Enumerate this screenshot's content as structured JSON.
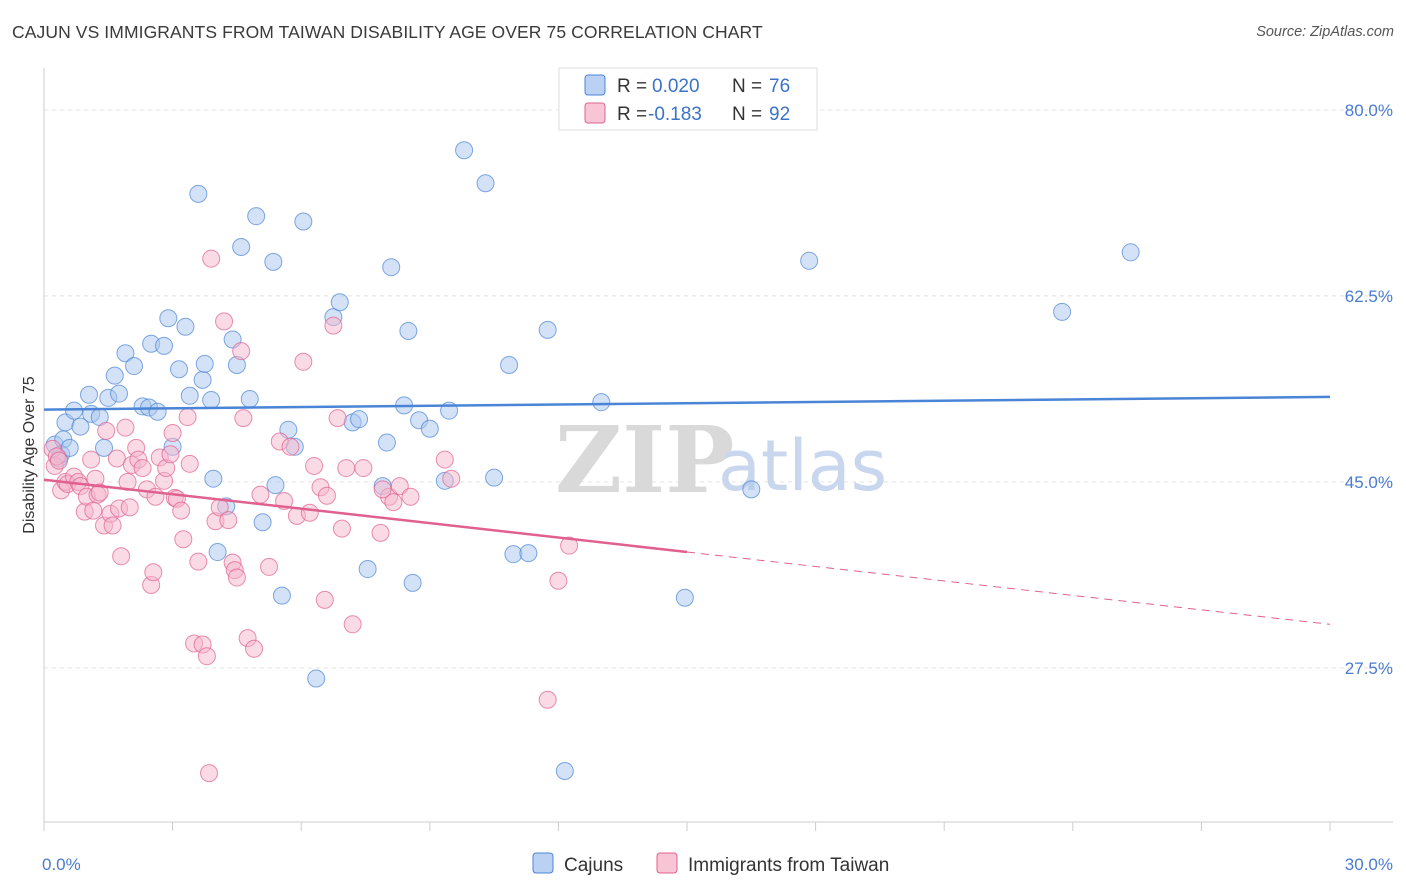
{
  "title": "CAJUN VS IMMIGRANTS FROM TAIWAN DISABILITY AGE OVER 75 CORRELATION CHART",
  "source": "Source: ZipAtlas.com",
  "watermark": {
    "zip": "ZIP",
    "atlas": "atlas"
  },
  "legend": {
    "r_label": "R =",
    "n_label": "N =",
    "rows": [
      {
        "r": "0.020",
        "n": "76",
        "color": "#a9c6f0"
      },
      {
        "r": "-0.183",
        "n": "92",
        "color": "#f6b6cb"
      }
    ]
  },
  "chart_data": {
    "type": "scatter",
    "title": "CAJUN VS IMMIGRANTS FROM TAIWAN DISABILITY AGE OVER 75 CORRELATION CHART",
    "xlabel": "",
    "ylabel": "Disability Age Over 75",
    "xlim": [
      0,
      30
    ],
    "ylim": [
      13,
      83
    ],
    "x_tick_labels": [
      "0.0%",
      "30.0%"
    ],
    "y_ticks": [
      {
        "value": 80,
        "label": "80.0%"
      },
      {
        "value": 62.5,
        "label": "62.5%"
      },
      {
        "value": 45,
        "label": "45.0%"
      },
      {
        "value": 27.5,
        "label": "27.5%"
      }
    ],
    "grid": true,
    "legend_position": "top-center",
    "series": [
      {
        "name": "Cajuns",
        "color": "#4a84d6",
        "fill": "#a9c6f0",
        "trend": {
          "x": [
            0,
            30
          ],
          "y": [
            51.8,
            53.0
          ],
          "dashed_from": null
        },
        "points": [
          [
            0.25,
            48.5
          ],
          [
            0.35,
            47.2
          ],
          [
            0.45,
            49.0
          ],
          [
            0.4,
            47.6
          ],
          [
            0.5,
            50.6
          ],
          [
            0.6,
            48.2
          ],
          [
            0.7,
            51.7
          ],
          [
            0.85,
            50.2
          ],
          [
            1.05,
            53.2
          ],
          [
            1.1,
            51.4
          ],
          [
            1.3,
            51.1
          ],
          [
            1.4,
            48.2
          ],
          [
            1.5,
            52.9
          ],
          [
            1.65,
            55.0
          ],
          [
            1.75,
            53.3
          ],
          [
            1.9,
            57.1
          ],
          [
            2.1,
            55.9
          ],
          [
            2.3,
            52.1
          ],
          [
            2.45,
            52.0
          ],
          [
            2.5,
            58.0
          ],
          [
            2.65,
            51.6
          ],
          [
            2.8,
            57.8
          ],
          [
            2.9,
            60.4
          ],
          [
            3.0,
            48.3
          ],
          [
            3.15,
            55.6
          ],
          [
            3.3,
            59.6
          ],
          [
            3.4,
            53.1
          ],
          [
            3.6,
            72.1
          ],
          [
            3.7,
            54.6
          ],
          [
            3.75,
            56.1
          ],
          [
            3.9,
            52.7
          ],
          [
            3.95,
            45.3
          ],
          [
            4.05,
            38.4
          ],
          [
            4.25,
            42.7
          ],
          [
            4.4,
            58.4
          ],
          [
            4.5,
            56.0
          ],
          [
            4.6,
            67.1
          ],
          [
            4.8,
            52.8
          ],
          [
            4.95,
            70.0
          ],
          [
            5.1,
            41.2
          ],
          [
            5.35,
            65.7
          ],
          [
            5.4,
            44.7
          ],
          [
            5.55,
            34.3
          ],
          [
            5.7,
            49.9
          ],
          [
            5.85,
            48.3
          ],
          [
            6.05,
            69.5
          ],
          [
            6.35,
            26.5
          ],
          [
            6.75,
            60.5
          ],
          [
            6.9,
            61.9
          ],
          [
            7.2,
            50.6
          ],
          [
            7.35,
            50.9
          ],
          [
            7.55,
            36.8
          ],
          [
            7.9,
            44.6
          ],
          [
            8.0,
            48.7
          ],
          [
            8.1,
            65.2
          ],
          [
            8.4,
            52.2
          ],
          [
            8.5,
            59.2
          ],
          [
            8.6,
            35.5
          ],
          [
            8.75,
            50.8
          ],
          [
            9.0,
            50.0
          ],
          [
            9.35,
            45.1
          ],
          [
            9.45,
            51.7
          ],
          [
            9.8,
            76.2
          ],
          [
            10.3,
            73.1
          ],
          [
            10.5,
            45.4
          ],
          [
            10.85,
            56.0
          ],
          [
            10.95,
            38.2
          ],
          [
            11.3,
            38.3
          ],
          [
            11.75,
            59.3
          ],
          [
            12.15,
            17.8
          ],
          [
            13.0,
            52.5
          ],
          [
            14.95,
            34.1
          ],
          [
            16.5,
            44.3
          ],
          [
            17.85,
            65.8
          ],
          [
            23.75,
            61.0
          ],
          [
            25.35,
            66.6
          ]
        ]
      },
      {
        "name": "Immigrants from Taiwan",
        "color": "#e0608f",
        "fill": "#f6b6cb",
        "trend": {
          "x": [
            0,
            15,
            30
          ],
          "y": [
            45.2,
            38.4,
            31.6
          ],
          "dashed_from": 15
        },
        "points": [
          [
            0.2,
            48.1
          ],
          [
            0.25,
            46.5
          ],
          [
            0.3,
            47.4
          ],
          [
            0.35,
            47.0
          ],
          [
            0.4,
            44.2
          ],
          [
            0.5,
            45.0
          ],
          [
            0.55,
            44.8
          ],
          [
            0.7,
            45.5
          ],
          [
            0.8,
            45.0
          ],
          [
            0.85,
            44.6
          ],
          [
            0.95,
            42.2
          ],
          [
            1.0,
            43.6
          ],
          [
            1.1,
            47.1
          ],
          [
            1.15,
            42.3
          ],
          [
            1.2,
            45.3
          ],
          [
            1.25,
            43.8
          ],
          [
            1.3,
            44.0
          ],
          [
            1.4,
            40.9
          ],
          [
            1.45,
            49.8
          ],
          [
            1.55,
            42.0
          ],
          [
            1.6,
            40.9
          ],
          [
            1.7,
            47.2
          ],
          [
            1.75,
            42.5
          ],
          [
            1.8,
            38.0
          ],
          [
            1.9,
            50.1
          ],
          [
            1.95,
            45.0
          ],
          [
            2.0,
            42.6
          ],
          [
            2.05,
            46.6
          ],
          [
            2.15,
            48.2
          ],
          [
            2.2,
            47.1
          ],
          [
            2.3,
            46.3
          ],
          [
            2.4,
            44.3
          ],
          [
            2.5,
            35.3
          ],
          [
            2.55,
            36.5
          ],
          [
            2.6,
            43.6
          ],
          [
            2.7,
            47.3
          ],
          [
            2.8,
            45.1
          ],
          [
            2.85,
            46.3
          ],
          [
            2.95,
            47.6
          ],
          [
            3.0,
            49.6
          ],
          [
            3.05,
            43.5
          ],
          [
            3.1,
            43.4
          ],
          [
            3.2,
            42.3
          ],
          [
            3.25,
            39.6
          ],
          [
            3.35,
            51.1
          ],
          [
            3.4,
            46.7
          ],
          [
            3.5,
            29.8
          ],
          [
            3.6,
            37.5
          ],
          [
            3.7,
            29.7
          ],
          [
            3.8,
            28.6
          ],
          [
            3.85,
            17.6
          ],
          [
            3.9,
            66.0
          ],
          [
            4.0,
            41.3
          ],
          [
            4.1,
            42.6
          ],
          [
            4.2,
            60.1
          ],
          [
            4.3,
            41.4
          ],
          [
            4.4,
            37.4
          ],
          [
            4.45,
            36.7
          ],
          [
            4.5,
            36.0
          ],
          [
            4.6,
            57.3
          ],
          [
            4.65,
            51.0
          ],
          [
            4.75,
            30.3
          ],
          [
            4.9,
            29.3
          ],
          [
            5.05,
            43.8
          ],
          [
            5.25,
            37.0
          ],
          [
            5.5,
            48.8
          ],
          [
            5.6,
            43.2
          ],
          [
            5.75,
            48.3
          ],
          [
            5.9,
            41.8
          ],
          [
            6.05,
            56.3
          ],
          [
            6.2,
            42.1
          ],
          [
            6.3,
            46.5
          ],
          [
            6.45,
            44.5
          ],
          [
            6.55,
            33.9
          ],
          [
            6.6,
            43.7
          ],
          [
            6.75,
            59.7
          ],
          [
            6.85,
            51.0
          ],
          [
            6.95,
            40.6
          ],
          [
            7.05,
            46.3
          ],
          [
            7.2,
            31.6
          ],
          [
            7.45,
            46.3
          ],
          [
            7.85,
            40.2
          ],
          [
            8.05,
            43.6
          ],
          [
            8.3,
            44.6
          ],
          [
            8.55,
            43.6
          ],
          [
            9.35,
            47.1
          ],
          [
            9.5,
            45.3
          ],
          [
            11.75,
            24.5
          ],
          [
            12.0,
            35.7
          ],
          [
            12.25,
            39.0
          ],
          [
            8.15,
            43.1
          ],
          [
            7.9,
            44.3
          ]
        ]
      }
    ]
  },
  "axes": {
    "y_label": "Disability Age Over 75",
    "x_min_label": "0.0%",
    "x_max_label": "30.0%"
  },
  "bottom_legend": [
    {
      "name": "Cajuns",
      "color": "#a9c6f0",
      "stroke": "#4a84d6"
    },
    {
      "name": "Immigrants from Taiwan",
      "color": "#f6b6cb",
      "stroke": "#e0608f"
    }
  ]
}
